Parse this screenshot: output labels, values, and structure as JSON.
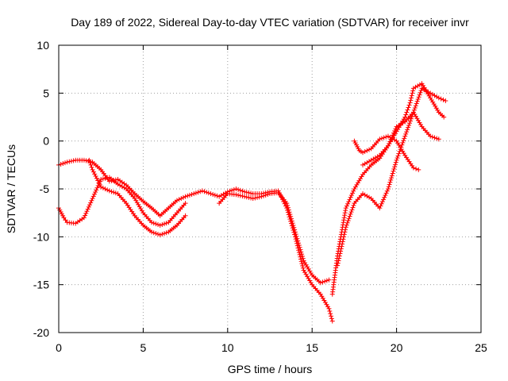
{
  "chart_data": {
    "type": "scatter",
    "title": "Day 189 of 2022, Sidereal Day-to-day VTEC variation (SDTVAR) for receiver invr",
    "xlabel": "GPS time / hours",
    "ylabel": "SDTVAR / TECUs",
    "xlim": [
      0,
      25
    ],
    "ylim": [
      -20,
      10
    ],
    "xticks": [
      0,
      5,
      10,
      15,
      20,
      25
    ],
    "yticks": [
      -20,
      -15,
      -10,
      -5,
      0,
      5,
      10
    ],
    "xtick_labels": [
      "0",
      "5",
      "10",
      "15",
      "20",
      "25"
    ],
    "ytick_labels": [
      "-20",
      "-15",
      "-10",
      "-5",
      "0",
      "5",
      "10"
    ],
    "grid": true,
    "marker": "+",
    "color": "#ff0000",
    "series": [
      {
        "name": "track-1",
        "x": [
          0.0,
          0.5,
          1.0,
          1.5,
          2.0,
          2.5,
          3.0,
          3.5,
          4.0,
          4.5,
          5.0,
          5.5,
          6.0,
          6.5,
          7.0,
          7.5,
          8.0,
          8.5,
          9.0,
          9.5,
          10.0,
          10.5,
          11.0,
          11.5,
          12.0,
          12.5,
          13.0,
          13.5,
          14.0,
          14.5,
          15.0,
          15.5,
          16.0,
          16.2
        ],
        "y": [
          -2.5,
          -2.2,
          -2.0,
          -2.0,
          -2.2,
          -3.0,
          -4.2,
          -4.0,
          -4.6,
          -5.5,
          -6.3,
          -7.0,
          -7.8,
          -7.0,
          -6.2,
          -5.8,
          -5.5,
          -5.2,
          -5.5,
          -5.8,
          -5.3,
          -5.0,
          -5.3,
          -5.5,
          -5.5,
          -5.3,
          -5.2,
          -7.0,
          -10.0,
          -13.5,
          -15.0,
          -16.0,
          -17.5,
          -18.8
        ]
      },
      {
        "name": "track-2",
        "x": [
          0.0,
          0.3,
          0.5,
          1.0,
          1.5,
          2.0,
          2.5,
          3.0,
          3.5,
          4.0,
          4.5,
          5.0,
          5.5,
          6.0,
          6.5,
          7.0,
          7.5
        ],
        "y": [
          -7.0,
          -8.0,
          -8.5,
          -8.6,
          -8.0,
          -6.0,
          -4.0,
          -3.8,
          -4.5,
          -5.0,
          -6.0,
          -7.5,
          -8.5,
          -8.8,
          -8.5,
          -7.5,
          -6.5
        ]
      },
      {
        "name": "track-3",
        "x": [
          1.8,
          2.0,
          2.5,
          3.0,
          3.5,
          4.0,
          4.5,
          5.0,
          5.5,
          6.0,
          6.5,
          7.0,
          7.5
        ],
        "y": [
          -2.0,
          -3.0,
          -4.8,
          -5.2,
          -5.5,
          -6.5,
          -7.8,
          -8.8,
          -9.5,
          -9.8,
          -9.5,
          -8.8,
          -7.8
        ]
      },
      {
        "name": "track-4",
        "x": [
          9.5,
          10.0,
          10.5,
          11.0,
          11.5,
          12.0,
          12.5,
          13.0,
          13.5,
          14.0,
          14.5,
          15.0,
          15.5,
          16.0
        ],
        "y": [
          -6.5,
          -5.5,
          -5.6,
          -5.8,
          -6.0,
          -5.8,
          -5.5,
          -5.4,
          -6.5,
          -9.5,
          -12.5,
          -14.0,
          -14.8,
          -14.5
        ]
      },
      {
        "name": "track-5",
        "x": [
          16.2,
          16.5,
          17.0,
          17.5,
          18.0,
          18.5,
          19.0,
          19.5,
          20.0,
          20.5,
          20.8,
          21.0,
          21.5,
          22.0,
          22.5,
          22.8
        ],
        "y": [
          -16.0,
          -12.0,
          -7.0,
          -5.0,
          -3.5,
          -2.5,
          -1.8,
          -0.5,
          1.0,
          2.5,
          4.0,
          5.5,
          6.0,
          4.5,
          3.0,
          2.5
        ]
      },
      {
        "name": "track-6",
        "x": [
          16.5,
          17.0,
          17.5,
          18.0,
          18.5,
          19.0,
          19.5,
          20.0,
          20.5,
          21.0,
          21.5,
          22.0,
          22.5,
          22.9
        ],
        "y": [
          -13.0,
          -9.0,
          -6.5,
          -5.5,
          -6.0,
          -7.0,
          -5.0,
          -2.0,
          0.5,
          3.0,
          5.5,
          5.0,
          4.5,
          4.2
        ]
      },
      {
        "name": "track-7",
        "x": [
          17.5,
          17.8,
          18.0,
          18.5,
          19.0,
          19.5,
          20.0,
          20.5,
          21.0,
          21.3
        ],
        "y": [
          0.0,
          -1.0,
          -1.2,
          -0.8,
          0.2,
          0.5,
          0.0,
          -1.5,
          -2.8,
          -3.0
        ]
      },
      {
        "name": "track-8",
        "x": [
          18.0,
          18.5,
          19.0,
          19.5,
          20.0,
          20.5,
          21.0,
          21.5,
          22.0,
          22.5
        ],
        "y": [
          -2.5,
          -2.0,
          -1.5,
          -0.5,
          1.5,
          2.0,
          3.0,
          1.5,
          0.5,
          0.2
        ]
      }
    ]
  }
}
